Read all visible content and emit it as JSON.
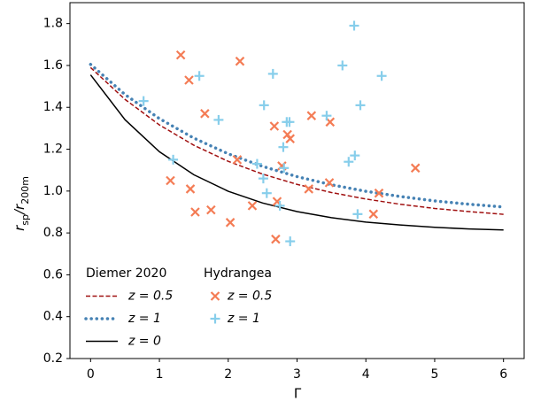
{
  "chart_data": {
    "type": "line",
    "xlabel": "Γ",
    "ylabel_parts": [
      {
        "text": "r",
        "sub": false
      },
      {
        "text": "sp",
        "sub": true
      },
      {
        "text": "/r",
        "sub": false
      },
      {
        "text": "200m",
        "sub": true
      }
    ],
    "xlim": [
      -0.3,
      6.3
    ],
    "ylim": [
      0.2,
      1.9
    ],
    "xticks": [
      0,
      1,
      2,
      3,
      4,
      5,
      6
    ],
    "yticks": [
      {
        "value": 0.2,
        "label": "0.2"
      },
      {
        "value": 0.4,
        "label": "0.4"
      },
      {
        "value": 0.6,
        "label": "0.6"
      },
      {
        "value": 0.8,
        "label": "0.8"
      },
      {
        "value": 1.0,
        "label": "1.0"
      },
      {
        "value": 1.2,
        "label": "1.2"
      },
      {
        "value": 1.4,
        "label": "1.4"
      },
      {
        "value": 1.6,
        "label": "1.6"
      },
      {
        "value": 1.8,
        "label": "1.8"
      }
    ],
    "grid": false,
    "legend_position": "lower left",
    "series_groups": [
      {
        "title": "Diemer 2020",
        "type": "line",
        "x": [
          0,
          0.5,
          1,
          1.5,
          2,
          2.5,
          3,
          3.5,
          4,
          4.5,
          5,
          5.5,
          6
        ],
        "series": [
          {
            "name": "z = 0.5",
            "color": "#a01010",
            "dash": "dashed",
            "linewidth": 1.5,
            "values": [
              1.59,
              1.438,
              1.316,
              1.219,
              1.142,
              1.081,
              1.032,
              0.993,
              0.962,
              0.937,
              0.917,
              0.902,
              0.889
            ]
          },
          {
            "name": "z = 1",
            "color": "#4682b4",
            "dash": "dotted",
            "linewidth": 3.5,
            "values": [
              1.605,
              1.461,
              1.346,
              1.253,
              1.178,
              1.118,
              1.069,
              1.03,
              0.999,
              0.974,
              0.953,
              0.937,
              0.924
            ]
          },
          {
            "name": "z = 0",
            "color": "#000000",
            "dash": "solid",
            "linewidth": 1.5,
            "values": [
              1.555,
              1.341,
              1.188,
              1.078,
              0.999,
              0.943,
              0.902,
              0.873,
              0.852,
              0.838,
              0.827,
              0.819,
              0.814
            ]
          }
        ]
      },
      {
        "title": "Hydrangea",
        "type": "scatter",
        "series": [
          {
            "name": "z = 0.5",
            "color": "#f47c55",
            "marker": "x",
            "x": [
              1.31,
              2.17,
              1.43,
              1.66,
              3.21,
              3.48,
              2.67,
              2.86,
              2.9,
              2.13,
              1.16,
              2.78,
              4.72,
              3.47,
              1.45,
              3.17,
              4.19,
              2.71,
              2.35,
              1.75,
              1.52,
              4.11,
              2.03,
              2.69
            ],
            "values": [
              1.65,
              1.62,
              1.53,
              1.37,
              1.36,
              1.33,
              1.31,
              1.27,
              1.25,
              1.15,
              1.05,
              1.12,
              1.11,
              1.04,
              1.01,
              1.01,
              0.99,
              0.95,
              0.93,
              0.91,
              0.9,
              0.89,
              0.85,
              0.77
            ]
          },
          {
            "name": "z = 1",
            "color": "#87ceeb",
            "marker": "+",
            "x": [
              3.83,
              3.66,
              4.23,
              1.58,
              2.65,
              0.77,
              3.92,
              2.52,
              3.43,
              1.86,
              2.85,
              2.89,
              2.8,
              3.84,
              3.75,
              1.2,
              2.42,
              2.81,
              2.51,
              2.56,
              2.75,
              3.88,
              2.9
            ],
            "values": [
              1.79,
              1.6,
              1.55,
              1.55,
              1.56,
              1.43,
              1.41,
              1.41,
              1.36,
              1.34,
              1.33,
              1.33,
              1.21,
              1.17,
              1.14,
              1.15,
              1.13,
              1.11,
              1.06,
              0.99,
              0.93,
              0.89,
              0.76
            ]
          }
        ]
      }
    ]
  }
}
